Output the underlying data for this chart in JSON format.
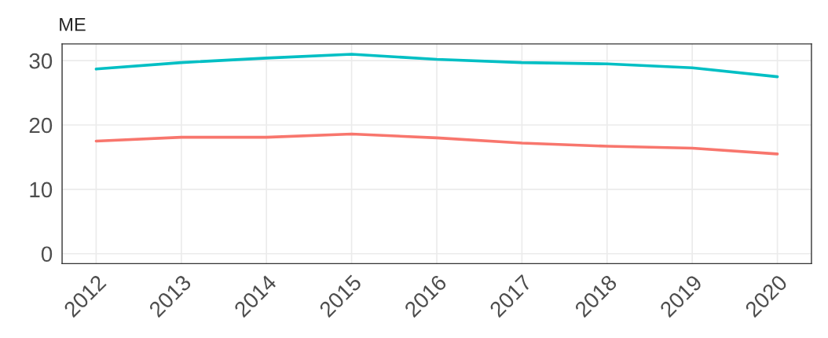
{
  "chart_data": {
    "type": "line",
    "title": "ME",
    "categories": [
      "2012",
      "2013",
      "2014",
      "2015",
      "2016",
      "2017",
      "2018",
      "2019",
      "2020"
    ],
    "series": [
      {
        "color": "#00bfc4",
        "values": [
          28.7,
          29.7,
          30.4,
          31.0,
          30.2,
          29.7,
          29.5,
          28.9,
          27.5
        ]
      },
      {
        "color": "#f8766d",
        "values": [
          17.5,
          18.1,
          18.1,
          18.6,
          18.0,
          17.2,
          16.7,
          16.4,
          15.5
        ]
      }
    ],
    "ylim": [
      -1.55,
      32.6
    ],
    "yticks": [
      0,
      10,
      20,
      30
    ],
    "grid": true,
    "legend": false,
    "line_style": "solid",
    "marker": "none"
  }
}
